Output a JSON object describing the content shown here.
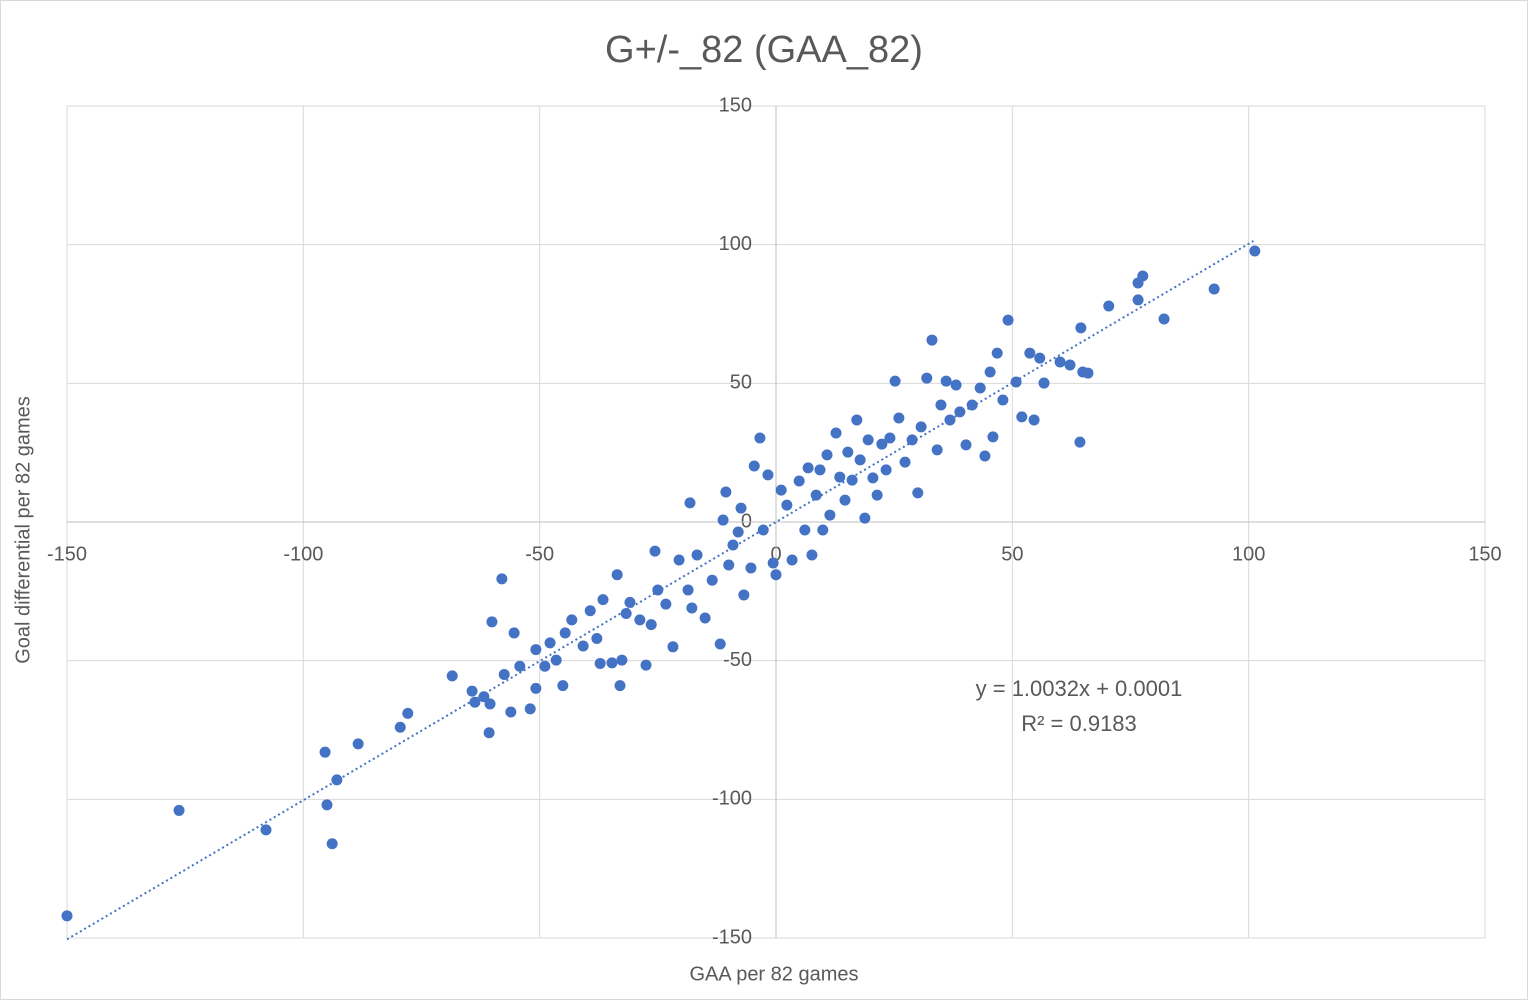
{
  "chart_data": {
    "type": "scatter",
    "title": "G+/-_82 (GAA_82)",
    "x_label": "GAA per 82 games",
    "y_label": "Goal differential per 82 games",
    "color": "#4472c4",
    "grid": true,
    "xlim": [
      -150,
      150
    ],
    "xticks": [
      -150,
      -100,
      -50,
      0,
      50,
      100,
      150
    ],
    "ylim": [
      -150,
      150
    ],
    "yticks": [
      -150,
      -100,
      -50,
      0,
      50,
      100,
      150
    ],
    "x": [
      -150,
      -126.3,
      -107.9,
      -95.4,
      -95,
      -93.9,
      -92.9,
      -88.4,
      -79.5,
      -77.9,
      -68.5,
      -64.3,
      -63.7,
      -61.8,
      -60.5,
      -60.7,
      -60.1,
      -58,
      -57.5,
      -56.1,
      -55.4,
      -54.2,
      -52,
      -50.8,
      -50.8,
      -48.9,
      -47.8,
      -46.5,
      -45.1,
      -44.6,
      -43.2,
      -40.8,
      -39.3,
      -37.9,
      -37.2,
      -36.6,
      -34.7,
      -33.6,
      -33,
      -32.6,
      -31.7,
      -30.9,
      -28.8,
      -27.5,
      -26.4,
      -25.6,
      -25,
      -23.3,
      -21.8,
      -20.5,
      -18.6,
      -18.2,
      -17.8,
      -16.7,
      -15,
      -13.5,
      -11.8,
      -11.2,
      -10.6,
      -10,
      -9.1,
      -8,
      -7.4,
      -6.8,
      -5.3,
      -4.6,
      -3.4,
      -2.7,
      -1.7,
      -0.6,
      0,
      1.1,
      2.3,
      3.4,
      4.9,
      6.1,
      6.8,
      7.6,
      8.5,
      9.3,
      9.9,
      10.8,
      11.4,
      12.7,
      13.5,
      14.6,
      15.2,
      16.1,
      17.1,
      17.8,
      18.8,
      19.5,
      20.5,
      21.4,
      22.4,
      23.3,
      24.1,
      25.2,
      26,
      27.3,
      28.8,
      30,
      30.7,
      31.9,
      33,
      34.1,
      34.9,
      36,
      36.8,
      38.1,
      38.9,
      40.2,
      41.5,
      43.2,
      44.2,
      45.3,
      45.9,
      46.8,
      48,
      49.1,
      50.8,
      52,
      53.7,
      54.6,
      55.8,
      56.7,
      60.1,
      62.2,
      64.3,
      64.5,
      64.9,
      66,
      70.4,
      76.6,
      76.6,
      77.6,
      82.1,
      92.7,
      101.3
    ],
    "values": [
      -142,
      -104,
      -111,
      -83,
      -102,
      -116,
      -93,
      -80,
      -74,
      -69,
      -55.5,
      -61,
      -65,
      -63,
      -65.6,
      -76,
      -36,
      -20.5,
      -55,
      -68.5,
      -40,
      -52,
      -67.4,
      -46,
      -60,
      -52,
      -43.6,
      -49.8,
      -59,
      -40,
      -35.3,
      -44.7,
      -32,
      -42,
      -51,
      -28,
      -50.8,
      -19,
      -59,
      -49.8,
      -33,
      -29,
      -35.3,
      -51.6,
      -37,
      -10.5,
      -24.5,
      -29.6,
      -45,
      -13.7,
      -24.5,
      6.9,
      -31,
      -11.9,
      -34.6,
      -21,
      -44,
      0.7,
      10.8,
      -15.5,
      -8.3,
      -3.6,
      5,
      -26.3,
      -16.6,
      20.2,
      30.3,
      -2.9,
      17,
      -14.8,
      -19,
      11.5,
      6.1,
      -13.7,
      14.8,
      -2.9,
      19.5,
      -11.9,
      9.7,
      18.8,
      -2.9,
      24.2,
      2.5,
      32.1,
      16.2,
      7.9,
      25.2,
      15.1,
      36.8,
      22.4,
      1.4,
      29.6,
      15.9,
      9.7,
      28.1,
      18.8,
      30.3,
      50.8,
      37.5,
      21.6,
      29.6,
      10.5,
      34.3,
      51.9,
      65.6,
      26,
      42.2,
      50.8,
      36.8,
      49.4,
      39.7,
      27.8,
      42.2,
      48.3,
      23.8,
      54.1,
      30.7,
      60.9,
      44,
      72.8,
      50.5,
      37.9,
      60.9,
      36.8,
      59.1,
      50.1,
      57.7,
      56.6,
      28.8,
      70,
      54.1,
      53.7,
      77.9,
      86.2,
      80.1,
      88.7,
      73.2,
      84,
      97.7
    ],
    "trendline": {
      "slope": 1.0032,
      "intercept": 0.0001,
      "x": [
        -150,
        101
      ],
      "equation": "y = 1.0032x + 0.0001",
      "r_squared": "R² = 0.9183"
    }
  }
}
